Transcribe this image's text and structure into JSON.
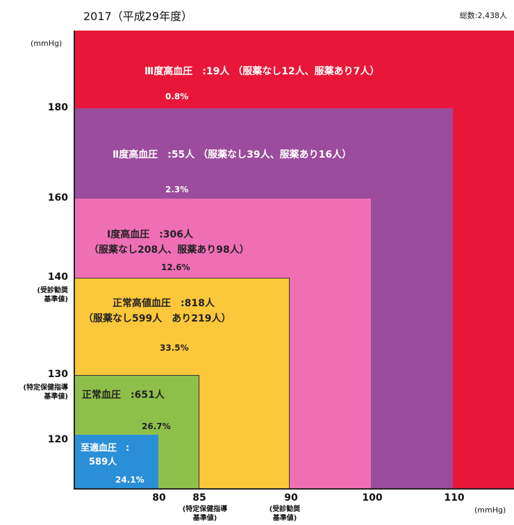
{
  "header": {
    "title": "2017（平成29年度）",
    "total": "総数:2,438人",
    "y_unit": "(mmHg)",
    "x_unit": "(mmHg)"
  },
  "chart_data": {
    "type": "nested-area",
    "title": "2017（平成29年度）",
    "total": "総数:2,438人",
    "x_ticks": [
      "80",
      "85",
      "90",
      "100",
      "110"
    ],
    "x_tick_notes": [
      {
        "tick": "85",
        "note": "(特定保健指導\n基準値)"
      },
      {
        "tick": "90",
        "note": "(受診勧奨\n基準値)"
      }
    ],
    "y_ticks": [
      "120",
      "130",
      "140",
      "160",
      "180"
    ],
    "y_tick_notes": [
      {
        "tick": "140",
        "note": "(受診勧奨\n基準値)"
      },
      {
        "tick": "130",
        "note": "(特定保健指導\n基準値)"
      }
    ],
    "categories": [
      {
        "name": "Ⅲ度高血圧",
        "label": "Ⅲ度高血圧　:19人 （服薬なし12人、服薬あり7人）",
        "count": 19,
        "no_med": 12,
        "med": 7,
        "pct_label": "0.8%",
        "percent": 0.8,
        "sbp_min": 180,
        "dbp_min": 110,
        "color": "#e8173a"
      },
      {
        "name": "Ⅱ度高血圧",
        "label": "Ⅱ度高血圧　:55人 （服薬なし39人、服薬あり16人）",
        "count": 55,
        "no_med": 39,
        "med": 16,
        "pct_label": "2.3%",
        "percent": 2.3,
        "sbp_min": 160,
        "dbp_min": 100,
        "color": "#9b4c9c"
      },
      {
        "name": "Ⅰ度高血圧",
        "label": "Ⅰ度高血圧　:306人",
        "label2": "（服薬なし208人、服薬あり98人）",
        "count": 306,
        "no_med": 208,
        "med": 98,
        "pct_label": "12.6%",
        "percent": 12.6,
        "sbp_min": 140,
        "dbp_min": 90,
        "color": "#ef6fb5"
      },
      {
        "name": "正常高値血圧",
        "label": "正常高値血圧　:818人",
        "label2": "（服薬なし599人　あり219人）",
        "count": 818,
        "no_med": 599,
        "med": 219,
        "pct_label": "33.5%",
        "percent": 33.5,
        "sbp_min": 130,
        "dbp_min": 85,
        "color": "#fdc73b"
      },
      {
        "name": "正常血圧",
        "label": "正常血圧　:651人",
        "count": 651,
        "pct_label": "26.7%",
        "percent": 26.7,
        "sbp_min": 120,
        "dbp_min": 80,
        "color": "#8ebf4a"
      },
      {
        "name": "至適血圧",
        "label": "至適血圧　:",
        "label2": "589人",
        "count": 589,
        "pct_label": "24.1%",
        "percent": 24.1,
        "sbp_min": null,
        "dbp_min": null,
        "color": "#2b8fd8"
      }
    ]
  }
}
